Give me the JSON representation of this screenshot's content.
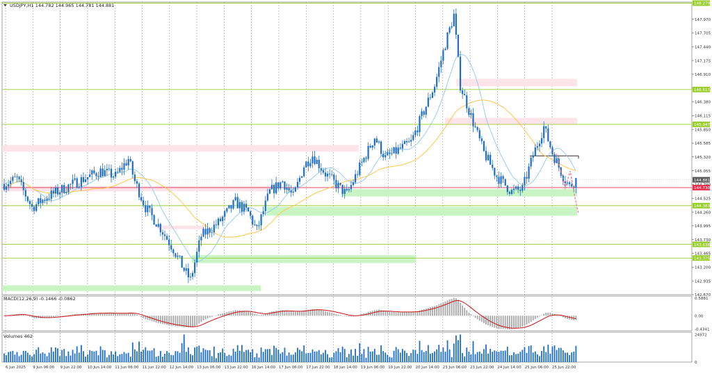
{
  "header": {
    "symbol_line": "USDJPY,H1  144.782 144.965 144.781 144.881"
  },
  "chart_data": [
    {
      "type": "candlestick",
      "panel": "price",
      "title": "USDJPY,H1",
      "ohlc_label": "144.782 144.965 144.781 144.881",
      "ylim": [
        142.67,
        148.299
      ],
      "y_ticks": [
        "147.970",
        "147.705",
        "147.440",
        "147.175",
        "146.910",
        "146.645",
        "146.380",
        "146.115",
        "145.850",
        "145.585",
        "145.320",
        "145.055",
        "144.790",
        "144.525",
        "144.260",
        "143.995",
        "143.730",
        "143.465",
        "143.200",
        "142.935",
        "142.670"
      ],
      "top_tag": "148.279",
      "x_ticks": [
        "6 Jun 2025",
        "9 Jun 06:00",
        "9 Jun 22:00",
        "10 Jun 14:00",
        "11 Jun 06:00",
        "11 Jun 22:00",
        "12 Jun 14:00",
        "13 Jun 06:00",
        "13 Jun 22:00",
        "16 Jun 14:00",
        "17 Jun 06:00",
        "17 Jun 22:00",
        "18 Jun 14:00",
        "19 Jun 06:00",
        "19 Jun 22:00",
        "20 Jun 14:00",
        "23 Jun 06:00",
        "23 Jun 22:00",
        "24 Jun 14:00",
        "25 Jun 06:00",
        "25 Jun 22:00"
      ],
      "current_price": "144.881",
      "level_lines": [
        {
          "value": 146.617,
          "label": "146.617",
          "color": "#9acd32"
        },
        {
          "value": 145.947,
          "label": "145.947",
          "color": "#9acd32"
        },
        {
          "value": 144.73,
          "label": "144.730",
          "color": "#e8314a"
        },
        {
          "value": 144.383,
          "label": "144.383",
          "color": "#9acd32"
        },
        {
          "value": 143.638,
          "label": "143.638",
          "color": "#9acd32"
        },
        {
          "value": 143.375,
          "label": "143.375",
          "color": "#9acd32"
        }
      ],
      "zones": [
        {
          "kind": "supply",
          "x_from": 0,
          "x_to": 0.62,
          "y_from": 145.42,
          "y_to": 145.55
        },
        {
          "kind": "supply",
          "x_from": 0,
          "x_to": 0.47,
          "y_from": 144.66,
          "y_to": 144.76
        },
        {
          "kind": "supply",
          "x_from": 0.27,
          "x_to": 0.35,
          "y_from": 143.93,
          "y_to": 144.0
        },
        {
          "kind": "supply",
          "x_from": 0.79,
          "x_to": 1.0,
          "y_from": 146.68,
          "y_to": 146.82
        },
        {
          "kind": "supply",
          "x_from": 0.77,
          "x_to": 1.0,
          "y_from": 145.94,
          "y_to": 146.07
        },
        {
          "kind": "demand",
          "x_from": 0.59,
          "x_to": 1.0,
          "y_from": 144.56,
          "y_to": 144.7
        },
        {
          "kind": "demand",
          "x_from": 0.46,
          "x_to": 1.0,
          "y_from": 144.19,
          "y_to": 144.36
        },
        {
          "kind": "demand",
          "x_from": 0.33,
          "x_to": 0.72,
          "y_from": 143.28,
          "y_to": 143.43
        },
        {
          "kind": "demand",
          "x_from": 0,
          "x_to": 0.45,
          "y_from": 142.74,
          "y_to": 142.85
        }
      ],
      "forecast_path": [
        145.38,
        144.72,
        145.05,
        144.6,
        144.22
      ],
      "resistance_segment": {
        "value": 145.34
      },
      "anchors": [
        {
          "t": 0,
          "v": 144.8
        },
        {
          "t": 6,
          "v": 144.9
        },
        {
          "t": 13,
          "v": 144.35
        },
        {
          "t": 20,
          "v": 144.55
        },
        {
          "t": 32,
          "v": 144.8
        },
        {
          "t": 45,
          "v": 145.05
        },
        {
          "t": 52,
          "v": 144.95
        },
        {
          "t": 58,
          "v": 145.28
        },
        {
          "t": 61,
          "v": 144.85
        },
        {
          "t": 66,
          "v": 144.35
        },
        {
          "t": 73,
          "v": 143.95
        },
        {
          "t": 79,
          "v": 143.55
        },
        {
          "t": 84,
          "v": 143.15
        },
        {
          "t": 87,
          "v": 142.95
        },
        {
          "t": 92,
          "v": 143.8
        },
        {
          "t": 100,
          "v": 144.05
        },
        {
          "t": 108,
          "v": 144.45
        },
        {
          "t": 114,
          "v": 144.25
        },
        {
          "t": 118,
          "v": 143.9
        },
        {
          "t": 124,
          "v": 144.65
        },
        {
          "t": 130,
          "v": 144.85
        },
        {
          "t": 135,
          "v": 144.55
        },
        {
          "t": 140,
          "v": 145.15
        },
        {
          "t": 144,
          "v": 145.35
        },
        {
          "t": 150,
          "v": 145.0
        },
        {
          "t": 156,
          "v": 144.75
        },
        {
          "t": 160,
          "v": 144.6
        },
        {
          "t": 167,
          "v": 145.2
        },
        {
          "t": 173,
          "v": 145.7
        },
        {
          "t": 178,
          "v": 145.3
        },
        {
          "t": 184,
          "v": 145.45
        },
        {
          "t": 190,
          "v": 145.6
        },
        {
          "t": 196,
          "v": 146.2
        },
        {
          "t": 201,
          "v": 146.7
        },
        {
          "t": 206,
          "v": 147.5
        },
        {
          "t": 210,
          "v": 148.05
        },
        {
          "t": 213,
          "v": 146.7
        },
        {
          "t": 218,
          "v": 146.1
        },
        {
          "t": 224,
          "v": 145.4
        },
        {
          "t": 230,
          "v": 144.95
        },
        {
          "t": 237,
          "v": 144.65
        },
        {
          "t": 242,
          "v": 144.7
        },
        {
          "t": 247,
          "v": 145.35
        },
        {
          "t": 252,
          "v": 145.9
        },
        {
          "t": 256,
          "v": 145.4
        },
        {
          "t": 261,
          "v": 144.95
        },
        {
          "t": 264,
          "v": 144.75
        },
        {
          "t": 267,
          "v": 144.88
        }
      ]
    },
    {
      "type": "histogram+line",
      "panel": "macd",
      "label": "MACD(12,26,9) -0.1466 -0.0862",
      "ylim": [
        -0.5,
        0.65
      ],
      "y_ticks": [
        "0.5881",
        "0.00",
        "-0.4341"
      ]
    },
    {
      "type": "bar",
      "panel": "volumes",
      "label": "Volumes 462",
      "ylim": [
        0,
        27000
      ],
      "y_ticks": [
        "24972",
        "0"
      ]
    }
  ],
  "colors": {
    "candle": "#1e6ec8",
    "ma_fast": "#8ec8f0",
    "ma_slow": "#ffc64a",
    "macd_hist": "#a8a8a8",
    "macd_signal": "#cc1111",
    "volume": "#1e6ec8",
    "supply_zone": "#fde4ea",
    "demand_zone": "#c9f5c4",
    "level_tag": "#9acd32",
    "red_tag": "#e8314a",
    "forecast": "#f07890"
  }
}
